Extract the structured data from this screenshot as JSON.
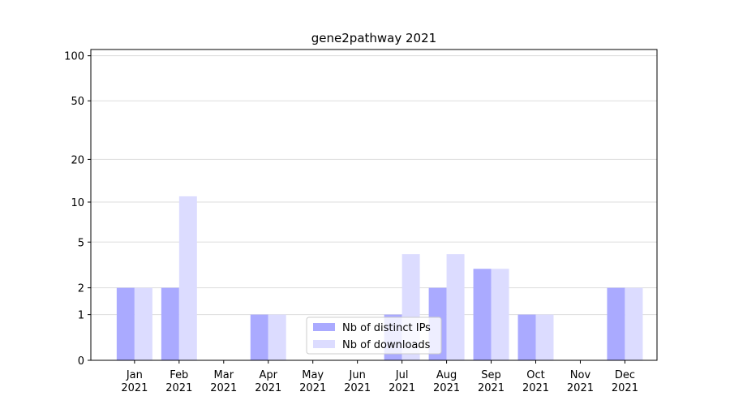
{
  "chart_data": {
    "type": "bar",
    "title": "gene2pathway 2021",
    "scale": "log1p",
    "categories": [
      "Jan 2021",
      "Feb 2021",
      "Mar 2021",
      "Apr 2021",
      "May 2021",
      "Jun 2021",
      "Jul 2021",
      "Aug 2021",
      "Sep 2021",
      "Oct 2021",
      "Nov 2021",
      "Dec 2021"
    ],
    "series": [
      {
        "name": "Nb of distinct IPs",
        "color": "#aaaaff",
        "values": [
          2,
          2,
          0,
          1,
          0,
          0,
          1,
          2,
          3,
          1,
          0,
          2
        ]
      },
      {
        "name": "Nb of downloads",
        "color": "#dcdcff",
        "values": [
          2,
          11,
          0,
          1,
          0,
          0,
          4,
          4,
          3,
          1,
          0,
          2
        ]
      }
    ],
    "ylim": [
      0,
      110
    ],
    "yticks": [
      0,
      1,
      2,
      5,
      10,
      20,
      50,
      100
    ],
    "grid": true,
    "legend": "lower center"
  }
}
